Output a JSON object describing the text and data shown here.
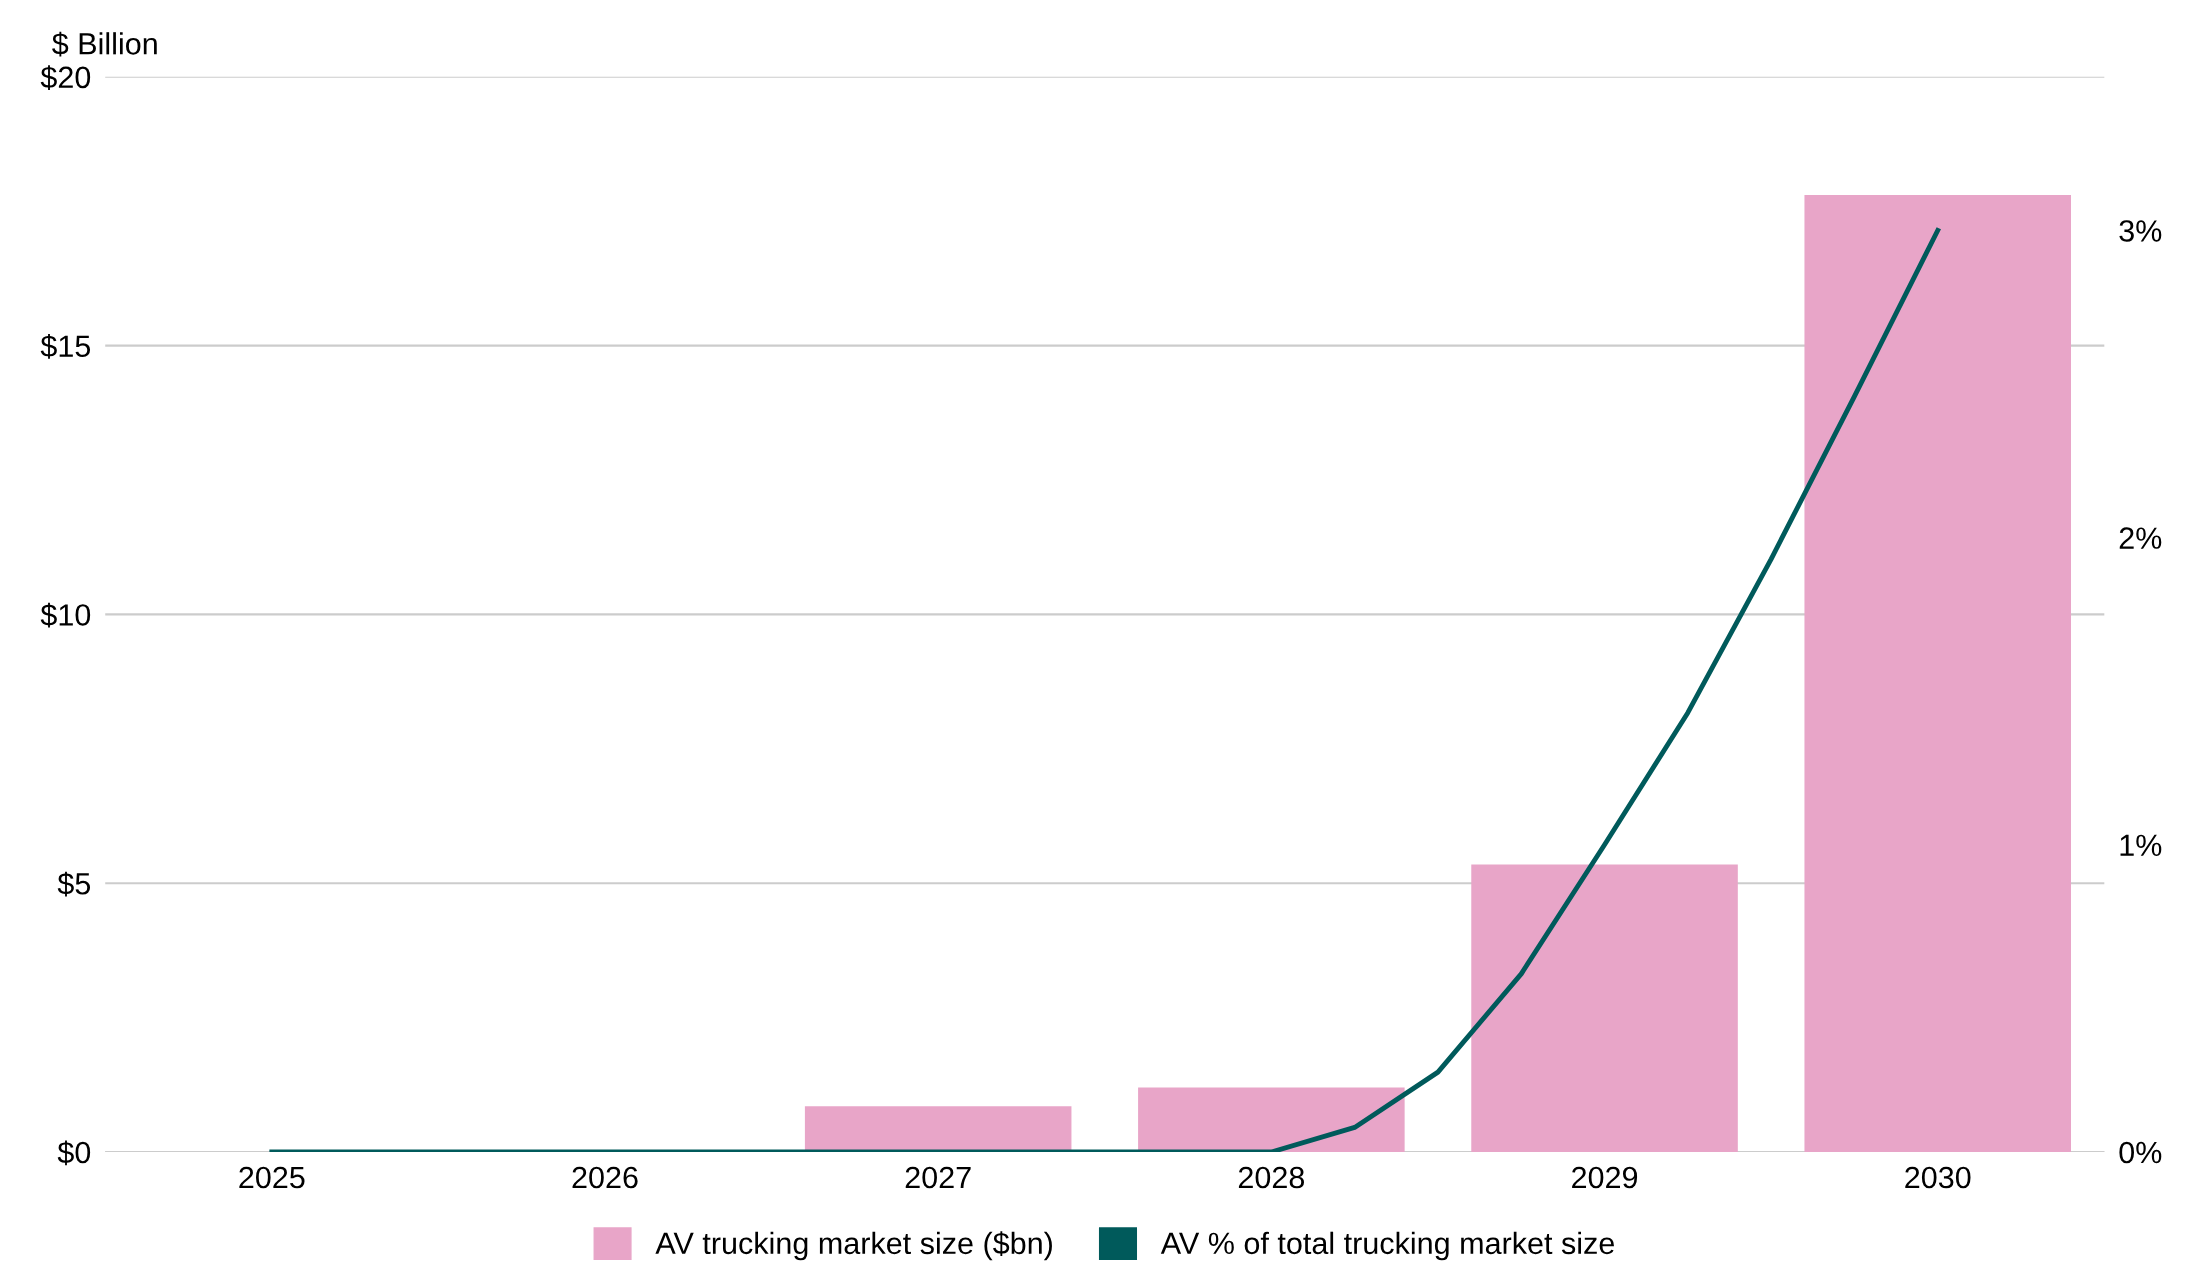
{
  "chart_data": {
    "type": "bar",
    "series": [
      {
        "name": "AV trucking market size ($bn)",
        "color": "#e8a5c8",
        "x": [
          2025,
          2026,
          2027,
          2028,
          2029,
          2030
        ],
        "values": [
          0,
          0,
          0.85,
          1.2,
          5.35,
          17.8
        ]
      },
      {
        "name": "AV % of total trucking market size",
        "color": "#005a5b",
        "type": "line",
        "axis": "y2",
        "x": [
          2025,
          2026,
          2027,
          2028,
          2028.25,
          2028.5,
          2028.75,
          2029,
          2029.25,
          2029.5,
          2029.75,
          2030
        ],
        "values": [
          0,
          0,
          0,
          0,
          0.08,
          0.26,
          0.58,
          1.0,
          1.43,
          1.93,
          2.46,
          3.0
        ]
      }
    ],
    "ylabel": "$ Billion",
    "xlim": [
      2024.5,
      2030.5
    ],
    "xticks": [
      2025,
      2026,
      2027,
      2028,
      2029,
      2030
    ],
    "ylim": [
      0,
      20
    ],
    "yticks": [
      {
        "value": 0,
        "label": "$0"
      },
      {
        "value": 5,
        "label": "$5"
      },
      {
        "value": 10,
        "label": "$10"
      },
      {
        "value": 15,
        "label": "$15"
      },
      {
        "value": 20,
        "label": "$20"
      }
    ],
    "y2lim": [
      0,
      3.5
    ],
    "y2ticks": [
      {
        "value": 0,
        "label": "0%"
      },
      {
        "value": 1,
        "label": "1%"
      },
      {
        "value": 2,
        "label": "2%"
      },
      {
        "value": 3,
        "label": "3%"
      }
    ],
    "grid": "y",
    "legend": "bottom",
    "marker": "none",
    "line_style": "solid"
  }
}
